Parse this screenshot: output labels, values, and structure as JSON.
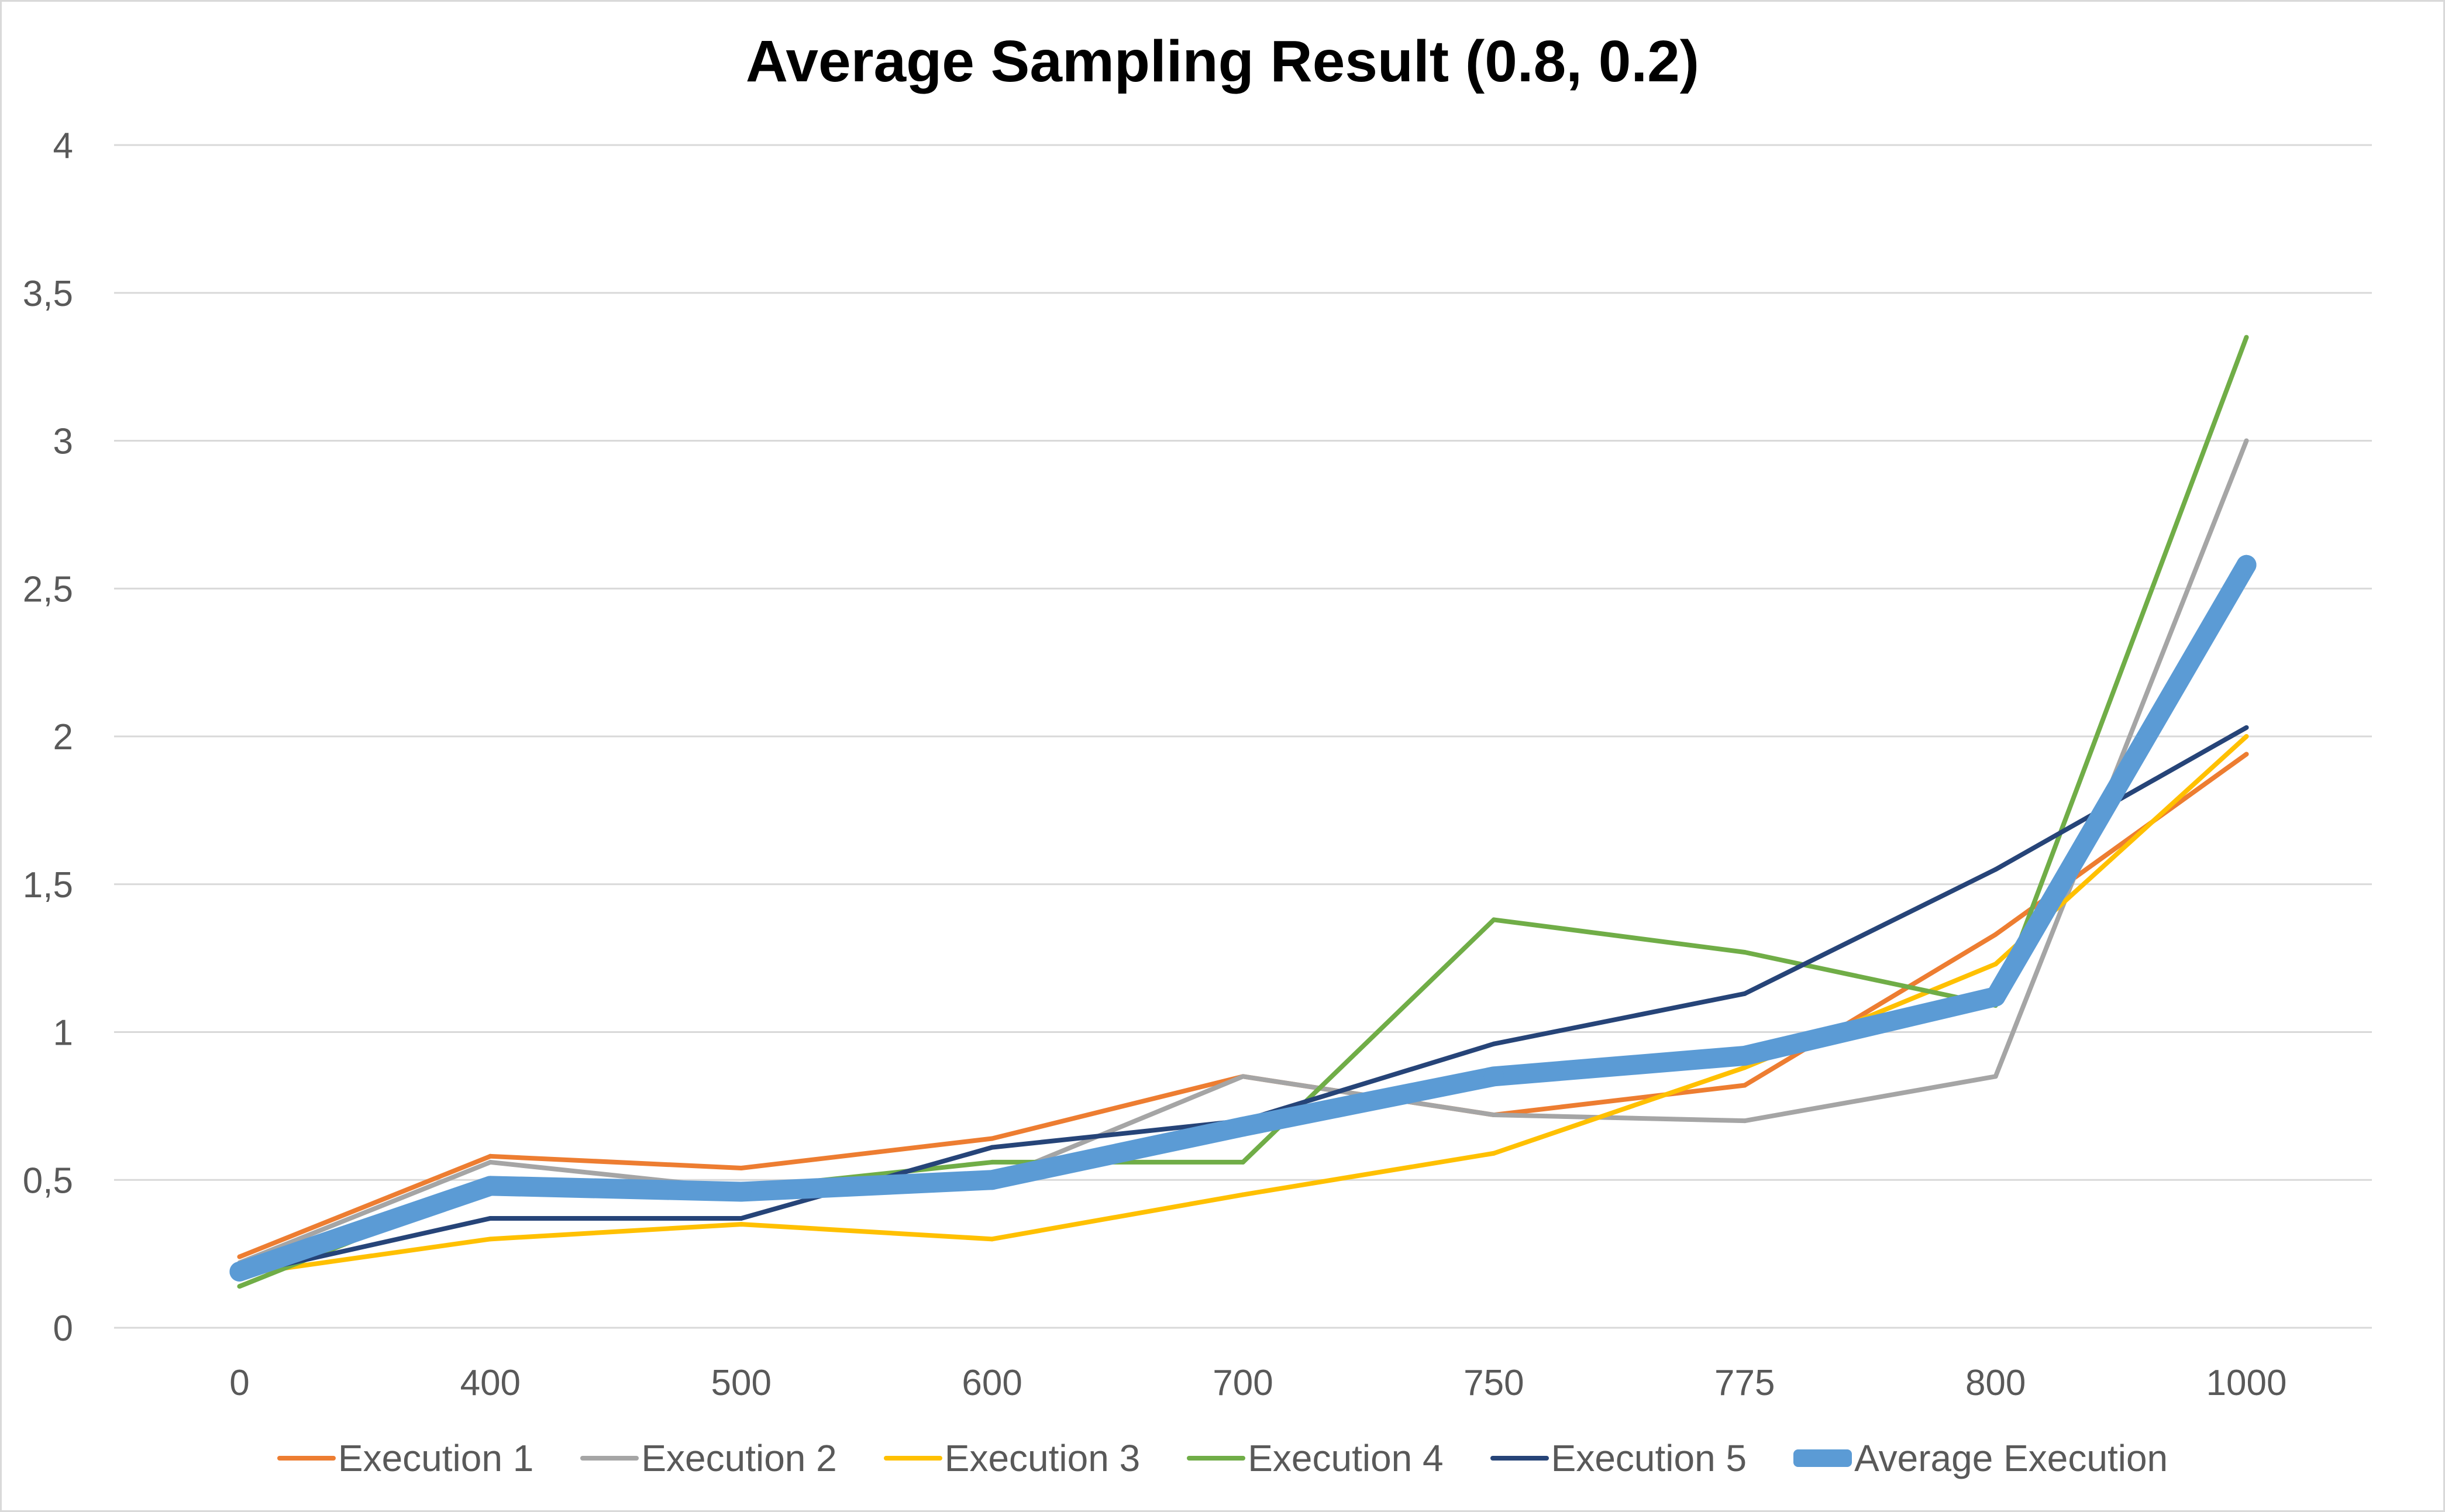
{
  "chart_data": {
    "type": "line",
    "title": "Average Sampling Result (0.8, 0.2)",
    "xlabel": "",
    "ylabel": "",
    "categories": [
      "0",
      "400",
      "500",
      "600",
      "700",
      "750",
      "775",
      "800",
      "1000"
    ],
    "ylim": [
      0,
      4
    ],
    "yticks": [
      0,
      0.5,
      1,
      1.5,
      2,
      2.5,
      3,
      3.5,
      4
    ],
    "ytick_labels": [
      "0",
      "0,5",
      "1",
      "1,5",
      "2",
      "2,5",
      "3",
      "3,5",
      "4"
    ],
    "grid": true,
    "legend_position": "bottom",
    "series": [
      {
        "name": "Execution 1",
        "color": "#ed7d31",
        "values": [
          0.24,
          0.58,
          0.54,
          0.64,
          0.85,
          0.72,
          0.82,
          1.33,
          1.94
        ]
      },
      {
        "name": "Execution 2",
        "color": "#a5a5a5",
        "values": [
          0.22,
          0.56,
          0.47,
          0.5,
          0.85,
          0.72,
          0.7,
          0.85,
          3.0
        ]
      },
      {
        "name": "Execution 3",
        "color": "#ffc000",
        "values": [
          0.18,
          0.3,
          0.35,
          0.3,
          0.45,
          0.59,
          0.88,
          1.23,
          2.0
        ]
      },
      {
        "name": "Execution 4",
        "color": "#70ad47",
        "values": [
          0.14,
          0.48,
          0.47,
          0.56,
          0.56,
          1.38,
          1.27,
          1.09,
          3.35
        ]
      },
      {
        "name": "Execution 5",
        "color": "#264478",
        "values": [
          0.18,
          0.37,
          0.37,
          0.61,
          0.7,
          0.96,
          1.13,
          1.55,
          2.03
        ]
      },
      {
        "name": "Average Execution",
        "color": "#5b9bd5",
        "values": [
          0.19,
          0.48,
          0.46,
          0.5,
          0.68,
          0.85,
          0.92,
          1.12,
          2.58
        ]
      }
    ]
  }
}
